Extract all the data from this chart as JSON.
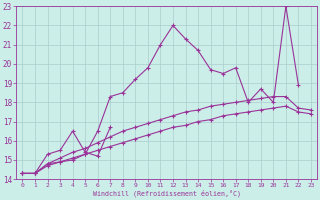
{
  "xlabel": "Windchill (Refroidissement éolien,°C)",
  "bg_color": "#cceee8",
  "grid_color": "#aacccc",
  "line_color": "#993399",
  "xlim": [
    -0.5,
    23.5
  ],
  "ylim": [
    14,
    23
  ],
  "xticks": [
    0,
    1,
    2,
    3,
    4,
    5,
    6,
    7,
    8,
    9,
    10,
    11,
    12,
    13,
    14,
    15,
    16,
    17,
    18,
    19,
    20,
    21,
    22,
    23
  ],
  "yticks": [
    14,
    15,
    16,
    17,
    18,
    19,
    20,
    21,
    22,
    23
  ],
  "series": [
    {
      "comment": "main zigzag line - peaks at 22 near x=12, then 23 at x=21",
      "x": [
        0,
        1,
        2,
        3,
        4,
        5,
        6,
        7,
        8,
        9,
        10,
        11,
        12,
        13,
        14,
        15,
        16,
        17,
        18,
        19,
        20,
        21,
        22
      ],
      "y": [
        14.3,
        14.3,
        14.8,
        14.9,
        15.0,
        15.3,
        16.5,
        18.3,
        18.5,
        19.2,
        19.8,
        21.0,
        22.0,
        21.3,
        20.7,
        19.7,
        19.5,
        19.8,
        18.0,
        18.7,
        18.0,
        23.0,
        18.9
      ]
    },
    {
      "comment": "short zigzag line x=0-7",
      "x": [
        0,
        1,
        2,
        3,
        4,
        5,
        6,
        7
      ],
      "y": [
        14.3,
        14.3,
        15.3,
        15.5,
        16.5,
        15.4,
        15.2,
        16.7
      ]
    },
    {
      "comment": "lower near-straight line",
      "x": [
        0,
        1,
        2,
        3,
        4,
        5,
        6,
        7,
        8,
        9,
        10,
        11,
        12,
        13,
        14,
        15,
        16,
        17,
        18,
        19,
        20,
        21,
        22,
        23
      ],
      "y": [
        14.3,
        14.3,
        14.7,
        14.9,
        15.1,
        15.3,
        15.5,
        15.7,
        15.9,
        16.1,
        16.3,
        16.5,
        16.7,
        16.8,
        17.0,
        17.1,
        17.3,
        17.4,
        17.5,
        17.6,
        17.7,
        17.8,
        17.5,
        17.4
      ]
    },
    {
      "comment": "upper near-straight line",
      "x": [
        0,
        1,
        2,
        3,
        4,
        5,
        6,
        7,
        8,
        9,
        10,
        11,
        12,
        13,
        14,
        15,
        16,
        17,
        18,
        19,
        20,
        21,
        22,
        23
      ],
      "y": [
        14.3,
        14.3,
        14.8,
        15.1,
        15.4,
        15.6,
        15.9,
        16.2,
        16.5,
        16.7,
        16.9,
        17.1,
        17.3,
        17.5,
        17.6,
        17.8,
        17.9,
        18.0,
        18.1,
        18.2,
        18.3,
        18.3,
        17.7,
        17.6
      ]
    }
  ]
}
